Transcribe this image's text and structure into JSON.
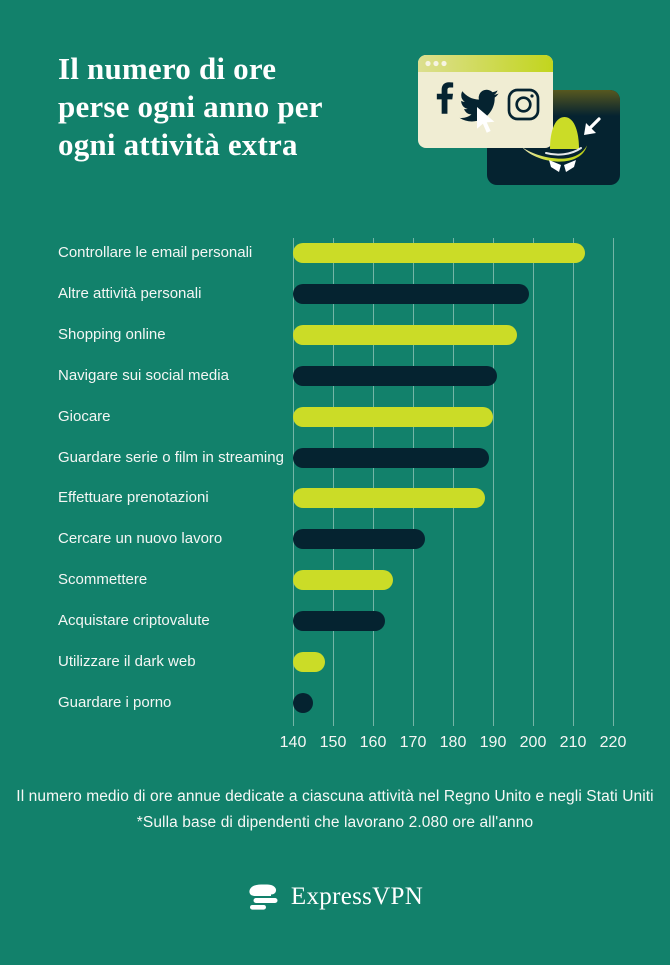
{
  "title": {
    "lines": [
      "Il numero di ore",
      "perse ogni anno per",
      "ogni attività extra"
    ]
  },
  "illustration": {
    "icons": [
      "facebook-icon",
      "twitter-icon",
      "instagram-icon",
      "cursor-pointer-icon",
      "arrow-down-left-icon",
      "spy-hat-icon",
      "spy-eyes-icon"
    ],
    "windows": [
      "browser-window",
      "spy-window"
    ]
  },
  "chart_data": {
    "type": "bar",
    "orientation": "horizontal",
    "title": "Il numero di ore perse ogni anno per ogni attività extra",
    "xlabel": "",
    "ylabel": "",
    "categories": [
      "Controllare le email personali",
      "Altre attività personali",
      "Shopping online",
      "Navigare sui social media",
      "Giocare",
      "Guardare serie o film in streaming",
      "Effettuare prenotazioni",
      "Cercare un nuovo lavoro",
      "Scommettere",
      "Acquistare criptovalute",
      "Utilizzare il dark web",
      "Guardare i porno"
    ],
    "values": [
      213,
      199,
      196,
      191,
      190,
      189,
      188,
      173,
      165,
      163,
      148,
      145
    ],
    "xlim": [
      140,
      220
    ],
    "x_ticks": [
      140,
      150,
      160,
      170,
      180,
      190,
      200,
      210,
      220
    ],
    "grid": true,
    "legend": false,
    "palette": [
      "#CBDC27",
      "#052330"
    ]
  },
  "footer": {
    "line1": "Il numero medio di ore annue dedicate a ciascuna attività nel Regno Unito e negli Stati Uniti",
    "line2": "*Sulla base di dipendenti che lavorano 2.080 ore all'anno"
  },
  "brand": {
    "name": "ExpressVPN"
  },
  "colors": {
    "background": "#12816B",
    "lime": "#CBDC27",
    "navy": "#052330",
    "cream": "#F0EDD3",
    "text": "#FFFFFF"
  }
}
